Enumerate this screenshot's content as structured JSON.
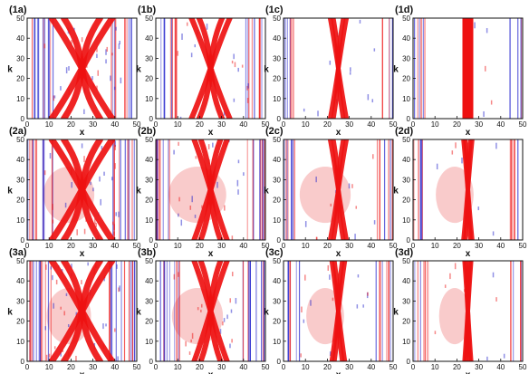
{
  "figure": {
    "rows": [
      {
        "panels": [
          {
            "label": "(1a)",
            "style": {
              "red_width": 7,
              "red_spread": 0.55,
              "blue_density": 0.55,
              "pink": 0.0
            }
          },
          {
            "label": "(1b)",
            "style": {
              "red_width": 6,
              "red_spread": 0.35,
              "blue_density": 0.35,
              "pink": 0.0
            }
          },
          {
            "label": "(1c)",
            "style": {
              "red_width": 5,
              "red_spread": 0.15,
              "blue_density": 0.18,
              "pink": 0.0
            }
          },
          {
            "label": "(1d)",
            "style": {
              "red_width": 5,
              "red_spread": 0.0,
              "blue_density": 0.1,
              "pink": 0.0
            }
          }
        ]
      },
      {
        "panels": [
          {
            "label": "(2a)",
            "style": {
              "red_width": 7,
              "red_spread": 0.55,
              "blue_density": 0.6,
              "pink": 0.5
            }
          },
          {
            "label": "(2b)",
            "style": {
              "red_width": 6,
              "red_spread": 0.3,
              "blue_density": 0.4,
              "pink": 0.6
            }
          },
          {
            "label": "(2c)",
            "style": {
              "red_width": 5,
              "red_spread": 0.15,
              "blue_density": 0.25,
              "pink": 0.5
            }
          },
          {
            "label": "(2d)",
            "style": {
              "red_width": 5,
              "red_spread": 0.08,
              "blue_density": 0.15,
              "pink": 0.3
            }
          }
        ]
      },
      {
        "panels": [
          {
            "label": "(3a)",
            "style": {
              "red_width": 7,
              "red_spread": 0.55,
              "blue_density": 0.65,
              "pink": 0.4
            }
          },
          {
            "label": "(3b)",
            "style": {
              "red_width": 6,
              "red_spread": 0.3,
              "blue_density": 0.45,
              "pink": 0.5
            }
          },
          {
            "label": "(3c)",
            "style": {
              "red_width": 5,
              "red_spread": 0.12,
              "blue_density": 0.25,
              "pink": 0.3
            }
          },
          {
            "label": "(3d)",
            "style": {
              "red_width": 5,
              "red_spread": 0.06,
              "blue_density": 0.15,
              "pink": 0.2
            }
          }
        ]
      }
    ],
    "axes": {
      "xlabel": "x",
      "ylabel": "k",
      "xticks": [
        "0",
        "10",
        "20",
        "30",
        "40",
        "50"
      ],
      "yticks": [
        "0",
        "10",
        "20",
        "30",
        "40",
        "50"
      ],
      "xlim": [
        0,
        50
      ],
      "ylim": [
        0,
        50
      ]
    },
    "colors": {
      "red": "#ee1111",
      "pink": "#f4a0a0",
      "blue": "#2222cc",
      "axis": "#111111"
    }
  }
}
